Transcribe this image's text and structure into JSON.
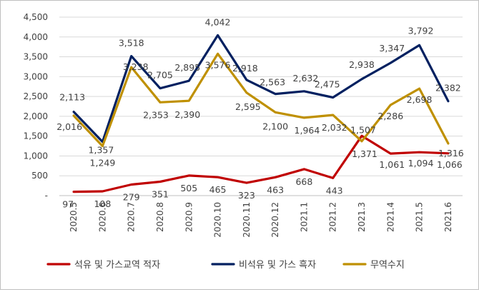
{
  "chart_data": {
    "type": "line",
    "x": [
      "2020.5",
      "2020.6",
      "2020.7",
      "2020.8",
      "2020.9",
      "2020.10",
      "2020.11",
      "2020.12",
      "2021.1",
      "2021.2",
      "2021.3",
      "2021.4",
      "2021.5",
      "2021.6"
    ],
    "ylim": [
      0,
      4500
    ],
    "y_ticks": [
      0,
      500,
      1000,
      1500,
      2000,
      2500,
      3000,
      3500,
      4000,
      4500
    ],
    "y_tick_labels": [
      "-",
      "500",
      "1,000",
      "1,500",
      "2,000",
      "2,500",
      "3,000",
      "3,500",
      "4,000",
      "4,500"
    ],
    "grid": "horizontal",
    "legend_position": "bottom",
    "series": [
      {
        "name": "석유 및 가스교역 적자",
        "color": "#c00000",
        "values": [
          97,
          108,
          279,
          351,
          505,
          465,
          323,
          463,
          668,
          443,
          1507,
          1061,
          1094,
          1066
        ],
        "labels": [
          "97",
          "108",
          "279",
          "351",
          "505",
          "465",
          "323",
          "463",
          "668",
          "443",
          "1,507",
          "1,061",
          "1,094",
          "1,066"
        ]
      },
      {
        "name": "비석유 및 가스 흑자",
        "color": "#002060",
        "values": [
          2113,
          1357,
          3518,
          2705,
          2895,
          4042,
          2918,
          2563,
          2632,
          2475,
          2938,
          3347,
          3792,
          2382
        ],
        "labels": [
          "2,113",
          "1,357",
          "3,518",
          "2,705",
          "2,895",
          "4,042",
          "2,918",
          "2,563",
          "2,632",
          "2,475",
          "2,938",
          "3,347",
          "3,792",
          "2,382"
        ]
      },
      {
        "name": "무역수지",
        "color": "#bf9000",
        "values": [
          2016,
          1249,
          3238,
          2353,
          2390,
          3576,
          2595,
          2100,
          1964,
          2032,
          1371,
          2286,
          2698,
          1316
        ],
        "labels": [
          "2,016",
          "1,249",
          "3,238",
          "2,353",
          "2,390",
          "3,576",
          "2,595",
          "2,100",
          "1,964",
          "2,032",
          "1,371",
          "2,286",
          "2,698",
          "1,316"
        ]
      }
    ]
  }
}
